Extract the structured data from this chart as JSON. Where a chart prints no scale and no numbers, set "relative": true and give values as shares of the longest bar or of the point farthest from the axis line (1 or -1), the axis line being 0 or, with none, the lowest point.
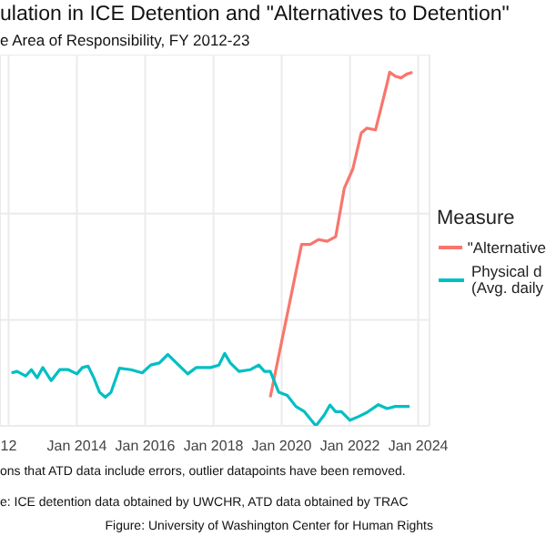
{
  "chart_data": {
    "type": "line",
    "title": "ulation in ICE Detention and \"Alternatives to Detention\"",
    "subtitle": "e Area of Responsibility, FY 2012-23",
    "legend_title": "Measure",
    "relative": true,
    "grid": true,
    "legend": "right",
    "xlim": [
      "2011-10",
      "2024-05"
    ],
    "xticks": [
      {
        "value": "2012-01",
        "label": "12"
      },
      {
        "value": "2014-01",
        "label": "Jan 2014"
      },
      {
        "value": "2016-01",
        "label": "Jan 2016"
      },
      {
        "value": "2018-01",
        "label": "Jan 2018"
      },
      {
        "value": "2020-01",
        "label": "Jan 2020"
      },
      {
        "value": "2022-01",
        "label": "Jan 2022"
      },
      {
        "value": "2024-01",
        "label": "Jan 2024"
      }
    ],
    "annotations": [
      "ons that ATD data include errors, outlier datapoints have been removed.",
      "e: ICE detention data obtained by UWCHR, ATD data obtained by TRAC",
      "Figure: University of Washington Center for Human Rights"
    ],
    "series": [
      {
        "name": "\"Alternative",
        "color": "#f8766d",
        "x": [
          "2019-09",
          "2020-08",
          "2020-11",
          "2021-02",
          "2021-05",
          "2021-08",
          "2021-09",
          "2021-11",
          "2022-02",
          "2022-05",
          "2022-07",
          "2022-10",
          "2022-12",
          "2023-02",
          "2023-03",
          "2023-05",
          "2023-07",
          "2023-09",
          "2023-11"
        ],
        "values": [
          0.081,
          0.513,
          0.513,
          0.527,
          0.522,
          0.535,
          0.581,
          0.672,
          0.727,
          0.828,
          0.842,
          0.837,
          0.901,
          0.967,
          1,
          0.989,
          0.984,
          0.995,
          1
        ]
      },
      {
        "name": "Physical d\n(Avg. daily",
        "color": "#00bfc4",
        "x": [
          "2012-02",
          "2012-04",
          "2012-07",
          "2012-09",
          "2012-11",
          "2013-01",
          "2013-04",
          "2013-07",
          "2013-10",
          "2014-01",
          "2014-03",
          "2014-05",
          "2014-07",
          "2014-09",
          "2014-11",
          "2015-01",
          "2015-04",
          "2015-08",
          "2015-12",
          "2016-03",
          "2016-06",
          "2016-09",
          "2016-12",
          "2017-04",
          "2017-07",
          "2017-12",
          "2018-03",
          "2018-05",
          "2018-07",
          "2018-10",
          "2019-02",
          "2019-05",
          "2019-07",
          "2019-09",
          "2019-12",
          "2020-03",
          "2020-06",
          "2020-09",
          "2021-01",
          "2021-04",
          "2021-06",
          "2021-08",
          "2021-10",
          "2022-01",
          "2022-04",
          "2022-07",
          "2022-11",
          "2023-02",
          "2023-05",
          "2023-10"
        ],
        "values": [
          0.15,
          0.154,
          0.141,
          0.159,
          0.136,
          0.165,
          0.128,
          0.159,
          0.159,
          0.147,
          0.165,
          0.169,
          0.136,
          0.095,
          0.081,
          0.095,
          0.163,
          0.159,
          0.15,
          0.172,
          0.178,
          0.202,
          0.178,
          0.147,
          0.165,
          0.165,
          0.172,
          0.205,
          0.178,
          0.154,
          0.159,
          0.172,
          0.154,
          0.154,
          0.095,
          0.086,
          0.055,
          0.04,
          0,
          0.031,
          0.059,
          0.04,
          0.04,
          0.016,
          0.026,
          0.038,
          0.06,
          0.049,
          0.055,
          0.055
        ]
      }
    ]
  }
}
